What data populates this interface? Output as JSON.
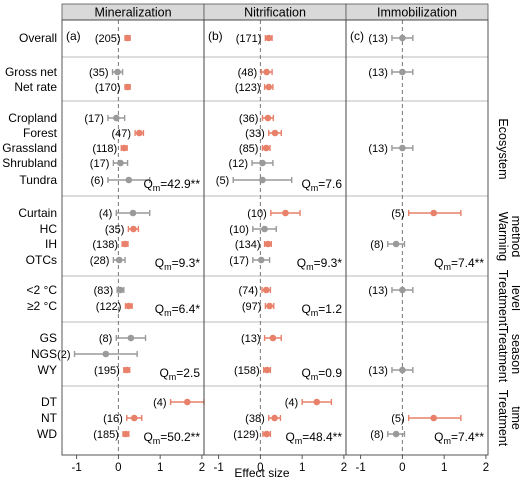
{
  "chart_data": {
    "type": "forest",
    "xlabel": "Effect size",
    "x_ticks": [
      -1,
      0,
      1,
      2
    ],
    "xlim": [
      -1.35,
      2.05
    ],
    "colors": {
      "significant": "#E8806A",
      "nonsignificant": "#9A9A9A",
      "panel_header": "#D9D9D9",
      "reference_line": "#777777",
      "group_divider": "#BBBBBB"
    },
    "point_color_rule": "Points are drawn in the significant colour when the confidence interval excludes 0; otherwise in the non-significant colour. Numbers in parentheses are sample sizes.",
    "panels": [
      {
        "title": "Mineralization",
        "tag": "(a)"
      },
      {
        "title": "Nitrification",
        "tag": "(b)"
      },
      {
        "title": "Immobilization",
        "tag": "(c)"
      }
    ],
    "groups": [
      {
        "label": "",
        "rows": [
          "Overall"
        ]
      },
      {
        "label": "",
        "rows": [
          "Gross net",
          "Net rate"
        ]
      },
      {
        "label": "Ecosystem",
        "rows": [
          "Cropland",
          "Forest",
          "Grassland",
          "Shrubland",
          "Tundra"
        ],
        "qm": [
          "Qm=42.9**",
          "Qm=7.6",
          ""
        ]
      },
      {
        "label": "Warming method",
        "rows": [
          "Curtain",
          "HC",
          "IH",
          "OTCs"
        ],
        "qm": [
          "Qm=9.3*",
          "Qm=9.3*",
          "Qm=7.4**"
        ]
      },
      {
        "label": "Treatment level",
        "rows": [
          "<2 °C",
          "≥2 °C"
        ],
        "qm": [
          "Qm=6.4*",
          "Qm=1.2",
          ""
        ]
      },
      {
        "label": "Treatment season",
        "rows": [
          "GS",
          "NGS",
          "WY"
        ],
        "qm": [
          "Qm=2.5",
          "Qm=0.9",
          ""
        ]
      },
      {
        "label": "Treatment time",
        "rows": [
          "DT",
          "NT",
          "WD"
        ],
        "qm": [
          "Qm=50.2**",
          "Qm=48.4**",
          "Qm=7.4**"
        ]
      }
    ],
    "series": [
      {
        "panel": "Mineralization",
        "points": [
          {
            "row": "Overall",
            "n": "(205)",
            "mean": 0.22,
            "lo": 0.16,
            "hi": 0.28,
            "sig": true
          },
          {
            "row": "Gross net",
            "n": "(35)",
            "mean": -0.02,
            "lo": -0.14,
            "hi": 0.1,
            "sig": false
          },
          {
            "row": "Net rate",
            "n": "(170)",
            "mean": 0.22,
            "lo": 0.16,
            "hi": 0.28,
            "sig": true
          },
          {
            "row": "Cropland",
            "n": "(17)",
            "mean": -0.05,
            "lo": -0.25,
            "hi": 0.15,
            "sig": false
          },
          {
            "row": "Forest",
            "n": "(47)",
            "mean": 0.5,
            "lo": 0.4,
            "hi": 0.6,
            "sig": true
          },
          {
            "row": "Grassland",
            "n": "(118)",
            "mean": 0.14,
            "lo": 0.07,
            "hi": 0.21,
            "sig": true
          },
          {
            "row": "Shrubland",
            "n": "(17)",
            "mean": 0.05,
            "lo": -0.12,
            "hi": 0.22,
            "sig": false
          },
          {
            "row": "Tundra",
            "n": "(6)",
            "mean": 0.25,
            "lo": -0.25,
            "hi": 0.75,
            "sig": false
          },
          {
            "row": "Curtain",
            "n": "(4)",
            "mean": 0.35,
            "lo": -0.05,
            "hi": 0.75,
            "sig": false
          },
          {
            "row": "HC",
            "n": "(35)",
            "mean": 0.36,
            "lo": 0.24,
            "hi": 0.48,
            "sig": true
          },
          {
            "row": "IH",
            "n": "(138)",
            "mean": 0.16,
            "lo": 0.09,
            "hi": 0.23,
            "sig": true
          },
          {
            "row": "OTCs",
            "n": "(28)",
            "mean": 0.02,
            "lo": -0.12,
            "hi": 0.16,
            "sig": false
          },
          {
            "row": "<2 °C",
            "n": "(83)",
            "mean": 0.05,
            "lo": -0.03,
            "hi": 0.13,
            "sig": false
          },
          {
            "row": "≥2 °C",
            "n": "(122)",
            "mean": 0.25,
            "lo": 0.17,
            "hi": 0.33,
            "sig": true
          },
          {
            "row": "GS",
            "n": "(8)",
            "mean": 0.3,
            "lo": -0.05,
            "hi": 0.65,
            "sig": false
          },
          {
            "row": "NGS",
            "n": "(2)",
            "mean": -0.3,
            "lo": -1.05,
            "hi": 0.45,
            "sig": false
          },
          {
            "row": "WY",
            "n": "(195)",
            "mean": 0.2,
            "lo": 0.13,
            "hi": 0.27,
            "sig": true
          },
          {
            "row": "DT",
            "n": "(4)",
            "mean": 1.65,
            "lo": 1.25,
            "hi": 2.05,
            "sig": true
          },
          {
            "row": "NT",
            "n": "(16)",
            "mean": 0.38,
            "lo": 0.2,
            "hi": 0.56,
            "sig": true
          },
          {
            "row": "WD",
            "n": "(185)",
            "mean": 0.18,
            "lo": 0.11,
            "hi": 0.25,
            "sig": true
          }
        ]
      },
      {
        "panel": "Nitrification",
        "points": [
          {
            "row": "Overall",
            "n": "(171)",
            "mean": 0.2,
            "lo": 0.12,
            "hi": 0.28,
            "sig": true
          },
          {
            "row": "Gross net",
            "n": "(48)",
            "mean": 0.15,
            "lo": 0.02,
            "hi": 0.28,
            "sig": true
          },
          {
            "row": "Net rate",
            "n": "(123)",
            "mean": 0.2,
            "lo": 0.1,
            "hi": 0.3,
            "sig": true
          },
          {
            "row": "Cropland",
            "n": "(36)",
            "mean": 0.18,
            "lo": 0.05,
            "hi": 0.31,
            "sig": true
          },
          {
            "row": "Forest",
            "n": "(33)",
            "mean": 0.35,
            "lo": 0.2,
            "hi": 0.5,
            "sig": true
          },
          {
            "row": "Grassland",
            "n": "(85)",
            "mean": 0.14,
            "lo": 0.05,
            "hi": 0.23,
            "sig": true
          },
          {
            "row": "Shrubland",
            "n": "(12)",
            "mean": 0.05,
            "lo": -0.2,
            "hi": 0.3,
            "sig": false
          },
          {
            "row": "Tundra",
            "n": "(5)",
            "mean": 0.05,
            "lo": -0.65,
            "hi": 0.75,
            "sig": false
          },
          {
            "row": "Curtain",
            "n": "(10)",
            "mean": 0.6,
            "lo": 0.25,
            "hi": 0.95,
            "sig": true
          },
          {
            "row": "HC",
            "n": "(10)",
            "mean": 0.1,
            "lo": -0.18,
            "hi": 0.38,
            "sig": false
          },
          {
            "row": "IH",
            "n": "(134)",
            "mean": 0.18,
            "lo": 0.1,
            "hi": 0.26,
            "sig": true
          },
          {
            "row": "OTCs",
            "n": "(17)",
            "mean": 0.02,
            "lo": -0.18,
            "hi": 0.22,
            "sig": false
          },
          {
            "row": "<2 °C",
            "n": "(74)",
            "mean": 0.14,
            "lo": 0.04,
            "hi": 0.24,
            "sig": true
          },
          {
            "row": "≥2 °C",
            "n": "(97)",
            "mean": 0.22,
            "lo": 0.12,
            "hi": 0.32,
            "sig": true
          },
          {
            "row": "GS",
            "n": "(13)",
            "mean": 0.3,
            "lo": 0.1,
            "hi": 0.5,
            "sig": true
          },
          {
            "row": "WY",
            "n": "(158)",
            "mean": 0.16,
            "lo": 0.08,
            "hi": 0.24,
            "sig": true
          },
          {
            "row": "DT",
            "n": "(4)",
            "mean": 1.35,
            "lo": 1.0,
            "hi": 1.7,
            "sig": true
          },
          {
            "row": "NT",
            "n": "(38)",
            "mean": 0.34,
            "lo": 0.2,
            "hi": 0.48,
            "sig": true
          },
          {
            "row": "WD",
            "n": "(129)",
            "mean": 0.15,
            "lo": 0.06,
            "hi": 0.24,
            "sig": true
          }
        ]
      },
      {
        "panel": "Immobilization",
        "points": [
          {
            "row": "Overall",
            "n": "(13)",
            "mean": 0.0,
            "lo": -0.25,
            "hi": 0.25,
            "sig": false
          },
          {
            "row": "Gross net",
            "n": "(13)",
            "mean": 0.0,
            "lo": -0.25,
            "hi": 0.25,
            "sig": false
          },
          {
            "row": "Grassland",
            "n": "(13)",
            "mean": 0.0,
            "lo": -0.25,
            "hi": 0.25,
            "sig": false
          },
          {
            "row": "Curtain",
            "n": "(5)",
            "mean": 0.75,
            "lo": 0.15,
            "hi": 1.4,
            "sig": true
          },
          {
            "row": "IH",
            "n": "(8)",
            "mean": -0.15,
            "lo": -0.35,
            "hi": 0.05,
            "sig": false
          },
          {
            "row": "<2 °C",
            "n": "(13)",
            "mean": 0.0,
            "lo": -0.25,
            "hi": 0.25,
            "sig": false
          },
          {
            "row": "WY",
            "n": "(13)",
            "mean": 0.0,
            "lo": -0.25,
            "hi": 0.25,
            "sig": false
          },
          {
            "row": "NT",
            "n": "(5)",
            "mean": 0.75,
            "lo": 0.15,
            "hi": 1.4,
            "sig": true
          },
          {
            "row": "WD",
            "n": "(8)",
            "mean": -0.15,
            "lo": -0.35,
            "hi": 0.05,
            "sig": false
          }
        ]
      }
    ]
  }
}
